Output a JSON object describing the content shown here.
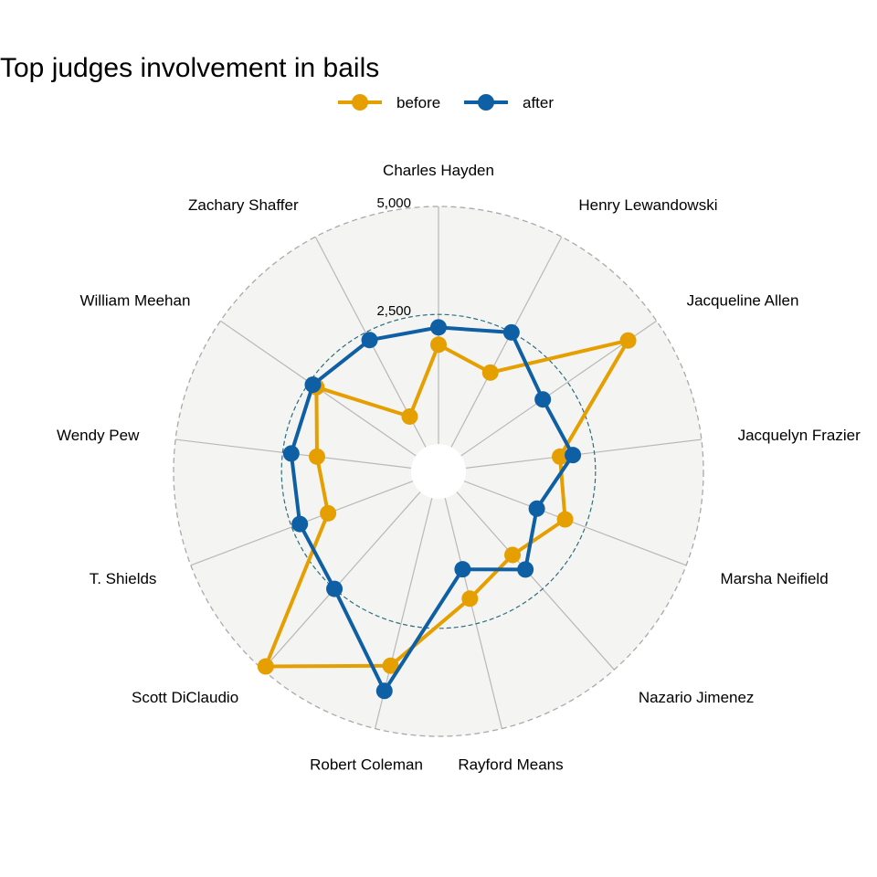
{
  "chart_data": {
    "type": "radar",
    "title": "Top judges involvement in bails",
    "categories": [
      "Charles Hayden",
      "Henry Lewandowski",
      "Jacqueline Allen",
      "Jacquelyn Frazier",
      "Marsha Neifield",
      "Nazario Jimenez",
      "Rayford Means",
      "Robert Coleman",
      "Scott DiClaudio",
      "T. Shields",
      "Wendy Pew",
      "William Meehan",
      "Zachary Shaffer"
    ],
    "series": [
      {
        "name": "before",
        "color": "#E69F00",
        "values": [
          1800,
          1450,
          4200,
          1700,
          2000,
          1450,
          1900,
          3500,
          4900,
          1600,
          1700,
          2300,
          300
        ]
      },
      {
        "name": "after",
        "color": "#0F5FA5",
        "values": [
          2200,
          2500,
          1800,
          2000,
          1300,
          1900,
          1200,
          4100,
          2500,
          2300,
          2300,
          2400,
          2300
        ]
      }
    ],
    "rlim": [
      -500,
      5000
    ],
    "radial_ticks": [
      {
        "value": 2500,
        "label": "2,500"
      },
      {
        "value": 5000,
        "label": "5,000"
      }
    ],
    "legend_position": "top",
    "grid": true
  }
}
